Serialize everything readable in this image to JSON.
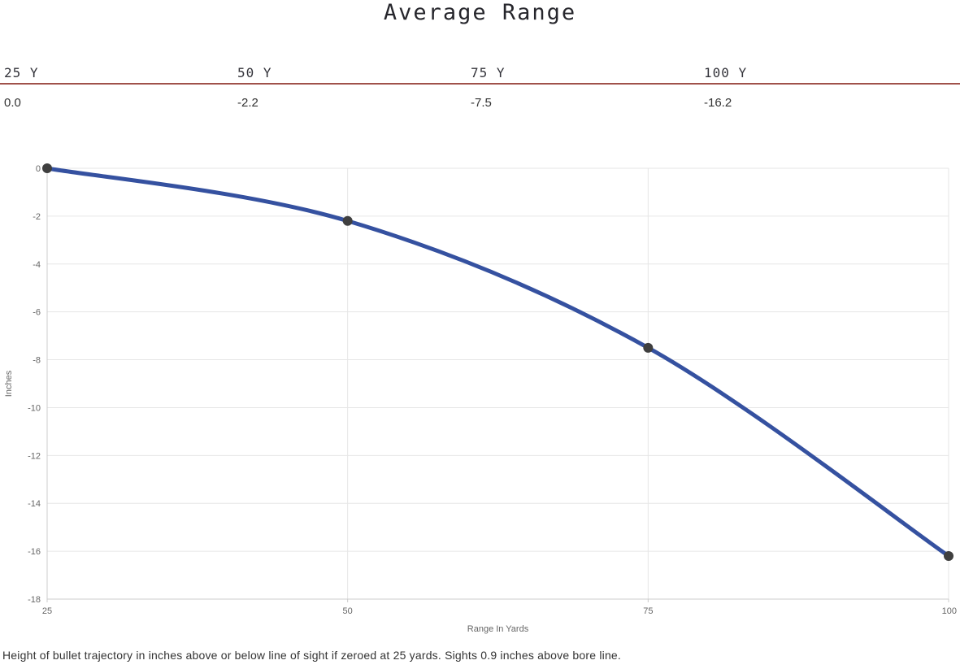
{
  "title": "Average Range",
  "summary_table": {
    "columns": [
      {
        "label": "25 Y",
        "value": "0.0"
      },
      {
        "label": "50 Y",
        "value": "-2.2"
      },
      {
        "label": "75 Y",
        "value": "-7.5"
      },
      {
        "label": "100 Y",
        "value": "-16.2"
      }
    ]
  },
  "chart_data": {
    "type": "line",
    "title": "",
    "x": [
      25,
      50,
      75,
      100
    ],
    "values": [
      0,
      -2.2,
      -7.5,
      -16.2
    ],
    "xlabel": "Range In Yards",
    "ylabel": "Inches",
    "xlim": [
      25,
      100
    ],
    "ylim": [
      -18,
      0
    ],
    "xticks": [
      25,
      50,
      75,
      100
    ],
    "yticks": [
      0,
      -2,
      -4,
      -6,
      -8,
      -10,
      -12,
      -14,
      -16,
      -18
    ],
    "grid": true,
    "legend": "none",
    "line_color": "#3551a0",
    "marker_color": "#3f3f3f",
    "grid_color": "#e6e6e6",
    "axis_color": "#cccccc",
    "tick_label_color": "#666666",
    "axis_title_color": "#666666"
  },
  "divider_color": "#a0524b",
  "caption": "Height of bullet trajectory in inches above or below line of sight if zeroed at 25 yards. Sights 0.9 inches above bore line."
}
